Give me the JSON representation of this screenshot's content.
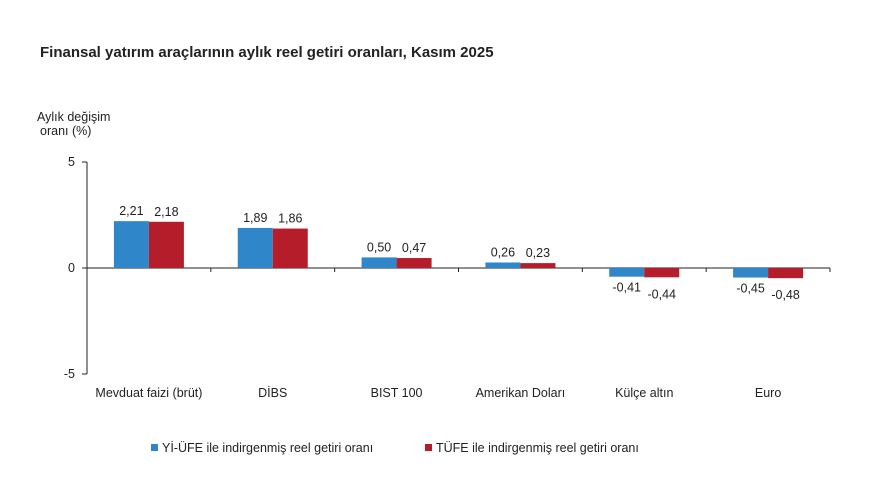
{
  "chart_data": {
    "type": "bar",
    "title": "Finansal yatırım araçlarının aylık reel getiri oranları, Kasım 2025",
    "ylabel_line1": "Aylık değişim",
    "ylabel_line2": "oranı (%)",
    "ylim": [
      -5,
      5
    ],
    "yticks": [
      "5",
      "0",
      "-5"
    ],
    "ytick_values": [
      5,
      0,
      -5
    ],
    "categories": [
      "Mevduat faizi (brüt)",
      "DİBS",
      "BIST 100",
      "Amerikan Doları",
      "Külçe altın",
      "Euro"
    ],
    "series": [
      {
        "name": "Yİ-ÜFE ile indirgenmiş reel getiri oranı",
        "color": "#2f86c8",
        "values": [
          2.21,
          1.89,
          0.5,
          0.26,
          -0.41,
          -0.45
        ],
        "labels": [
          "2,21",
          "1,89",
          "0,50",
          "0,26",
          "-0,41",
          "-0,45"
        ]
      },
      {
        "name": "TÜFE ile indirgenmiş reel getiri oranı",
        "color": "#b51d2b",
        "values": [
          2.18,
          1.86,
          0.47,
          0.23,
          -0.44,
          -0.48
        ],
        "labels": [
          "2,18",
          "1,86",
          "0,47",
          "0,23",
          "-0,44",
          "-0,48"
        ]
      }
    ],
    "grid": false,
    "legend_position": "bottom"
  }
}
